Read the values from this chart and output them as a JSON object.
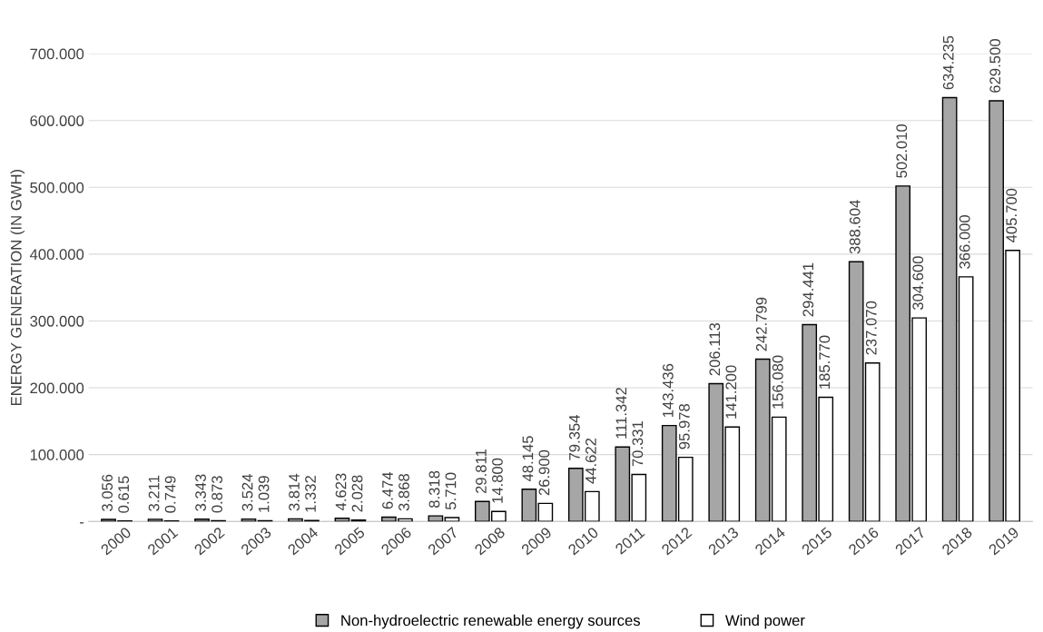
{
  "chart_data": {
    "type": "bar",
    "ylabel": "ENERGY GENERATION (IN GWH)",
    "categories": [
      "2000",
      "2001",
      "2002",
      "2003",
      "2004",
      "2005",
      "2006",
      "2007",
      "2008",
      "2009",
      "2010",
      "2011",
      "2012",
      "2013",
      "2014",
      "2015",
      "2016",
      "2017",
      "2018",
      "2019"
    ],
    "series": [
      {
        "name": "Non-hydroelectric renewable energy sources",
        "color": "#a6a6a6",
        "values": [
          3.056,
          3.211,
          3.343,
          3.524,
          3.814,
          4.623,
          6.474,
          8.318,
          29.811,
          48.145,
          79.354,
          111.342,
          143.436,
          206.113,
          242.799,
          294.441,
          388.604,
          502.01,
          634.235,
          629.5
        ],
        "value_labels": [
          "3.056",
          "3.211",
          "3.343",
          "3.524",
          "3.814",
          "4.623",
          "6.474",
          "8.318",
          "29.811",
          "48.145",
          "79.354",
          "111.342",
          "143.436",
          "206.113",
          "242.799",
          "294.441",
          "388.604",
          "502.010",
          "634.235",
          "629.500"
        ]
      },
      {
        "name": "Wind power",
        "color": "#ffffff",
        "values": [
          0.615,
          0.749,
          0.873,
          1.039,
          1.332,
          2.028,
          3.868,
          5.71,
          14.8,
          26.9,
          44.622,
          70.331,
          95.978,
          141.2,
          156.08,
          185.77,
          237.07,
          304.6,
          366.0,
          405.7
        ],
        "value_labels": [
          "0.615",
          "0.749",
          "0.873",
          "1.039",
          "1.332",
          "2.028",
          "3.868",
          "5.710",
          "14.800",
          "26.900",
          "44.622",
          "70.331",
          "95.978",
          "141.200",
          "156.080",
          "185.770",
          "237.070",
          "304.600",
          "366.000",
          "405.700"
        ]
      }
    ],
    "ylim": [
      0,
      700
    ],
    "yticks": [
      {
        "value": 0,
        "label": "-"
      },
      {
        "value": 100,
        "label": "100.000"
      },
      {
        "value": 200,
        "label": "200.000"
      },
      {
        "value": 300,
        "label": "300.000"
      },
      {
        "value": 400,
        "label": "400.000"
      },
      {
        "value": 500,
        "label": "500.000"
      },
      {
        "value": 600,
        "label": "600.000"
      },
      {
        "value": 700,
        "label": "700.000"
      }
    ],
    "grid": "y",
    "legend": "bottom"
  }
}
